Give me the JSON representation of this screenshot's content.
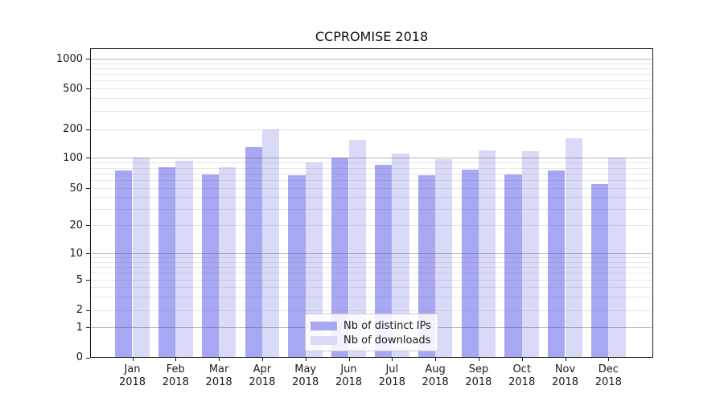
{
  "chart": {
    "title": "CCPROMISE 2018"
  },
  "chart_data": {
    "type": "bar",
    "title": "CCPROMISE 2018",
    "xlabel": "",
    "ylabel": "",
    "grid": "both",
    "y_scale": "log-like with linear 0-1 segment",
    "y_ticks": [
      "0",
      "1",
      "2",
      "5",
      "10",
      "20",
      "50",
      "100",
      "200",
      "500",
      "1000"
    ],
    "ylim": [
      0,
      1200
    ],
    "legend_position": "lower center",
    "categories": [
      {
        "month": "Jan",
        "year": "2018"
      },
      {
        "month": "Feb",
        "year": "2018"
      },
      {
        "month": "Mar",
        "year": "2018"
      },
      {
        "month": "Apr",
        "year": "2018"
      },
      {
        "month": "May",
        "year": "2018"
      },
      {
        "month": "Jun",
        "year": "2018"
      },
      {
        "month": "Jul",
        "year": "2018"
      },
      {
        "month": "Aug",
        "year": "2018"
      },
      {
        "month": "Sep",
        "year": "2018"
      },
      {
        "month": "Oct",
        "year": "2018"
      },
      {
        "month": "Nov",
        "year": "2018"
      },
      {
        "month": "Dec",
        "year": "2018"
      }
    ],
    "series": [
      {
        "name": "Nb of distinct IPs",
        "color": "#a7a7f3",
        "values": [
          75,
          81,
          68,
          129,
          67,
          100,
          86,
          67,
          76,
          69,
          75,
          55
        ]
      },
      {
        "name": "Nb of downloads",
        "color": "#d9d9f8",
        "values": [
          100,
          94,
          81,
          197,
          91,
          154,
          110,
          97,
          120,
          118,
          161,
          100
        ]
      }
    ]
  },
  "colors": {
    "bar_distinct_ips": "#a7a7f3",
    "bar_downloads": "#d9d9f8",
    "grid_major": "#a5a5a5",
    "grid_minor": "#e2e2e2",
    "spine": "#1a1a1a",
    "text": "#1a1a1a",
    "legend_border": "#cccccc",
    "background": "#ffffff"
  }
}
